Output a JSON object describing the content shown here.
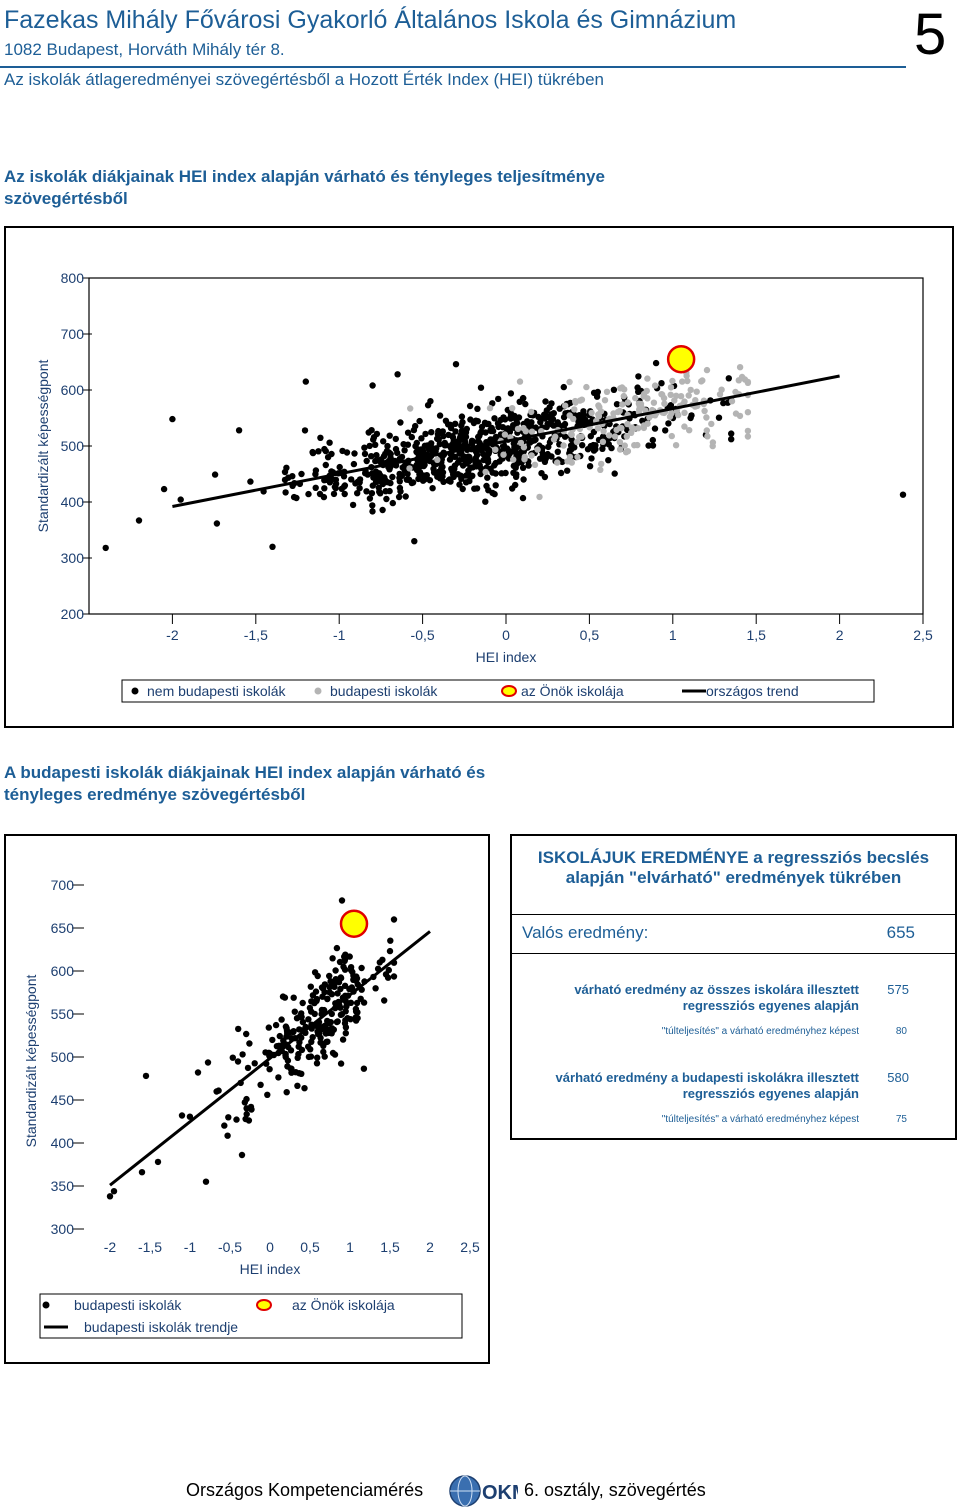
{
  "header": {
    "school_name": "Fazekas Mihály Fővárosi Gyakorló Általános Iskola és Gimnázium",
    "address": "1082 Budapest, Horváth Mihály tér 8.",
    "report_title": "Az iskolák átlageredményei szövegértésből a Hozott Érték Index (HEI) tükrében",
    "page_number": "5"
  },
  "section1": {
    "title": "Az iskolák diákjainak HEI index alapján várható és tényleges teljesítménye szövegértésből"
  },
  "section2": {
    "title": "A budapesti iskolák diákjainak HEI index alapján várható és tényleges eredménye szövegértésből"
  },
  "chart_data": [
    {
      "type": "scatter",
      "ylabel": "Standardizált képességpont",
      "xlabel": "HEI index",
      "xlim": [
        -2.5,
        2.5
      ],
      "ylim": [
        200,
        800
      ],
      "x_ticks": [
        "-2",
        "-1,5",
        "-1",
        "-0,5",
        "0",
        "0,5",
        "1",
        "1,5",
        "2",
        "2,5"
      ],
      "x_tick_values": [
        -2,
        -1.5,
        -1,
        -0.5,
        0,
        0.5,
        1,
        1.5,
        2,
        2.5
      ],
      "y_ticks": [
        "800",
        "700",
        "600",
        "500",
        "400",
        "300",
        "200"
      ],
      "y_tick_values": [
        800,
        700,
        600,
        500,
        400,
        300,
        200
      ],
      "legend": [
        {
          "label": "nem budapesti iskolák",
          "marker": "dot",
          "color": "#000000"
        },
        {
          "label": "budapesti iskolák",
          "marker": "dot",
          "color": "#b4b4b4"
        },
        {
          "label": "az Önök iskolája",
          "marker": "highlight",
          "color": "#ffff00"
        },
        {
          "label": "országos trend",
          "marker": "line",
          "color": "#000000"
        }
      ],
      "trend": {
        "x": [
          -2,
          2
        ],
        "y": [
          392,
          625
        ]
      },
      "own_school": {
        "x": 1.05,
        "y": 655
      },
      "clusters": [
        {
          "series": "nem budapesti iskolák",
          "count": 760,
          "x_mean": -0.15,
          "x_sd": 0.55,
          "x_min": -1.95,
          "x_max": 1.35,
          "slope": 58,
          "intercept": 505,
          "noise": 34
        },
        {
          "series": "budapesti iskolák",
          "count": 190,
          "x_mean": 0.75,
          "x_sd": 0.42,
          "x_min": -1.3,
          "x_max": 1.45,
          "slope": 58,
          "intercept": 505,
          "noise": 36
        }
      ],
      "points": [
        {
          "series": "nem budapesti iskolák",
          "x": -2.4,
          "y": 318
        },
        {
          "series": "nem budapesti iskolák",
          "x": -2.2,
          "y": 367
        },
        {
          "series": "nem budapesti iskolák",
          "x": -2.0,
          "y": 548
        },
        {
          "series": "nem budapesti iskolák",
          "x": -2.05,
          "y": 423
        },
        {
          "series": "nem budapesti iskolák",
          "x": -1.6,
          "y": 528
        },
        {
          "series": "nem budapesti iskolák",
          "x": -1.4,
          "y": 320
        },
        {
          "series": "nem budapesti iskolák",
          "x": -0.65,
          "y": 628
        },
        {
          "series": "nem budapesti iskolák",
          "x": -0.8,
          "y": 608
        },
        {
          "series": "nem budapesti iskolák",
          "x": -0.3,
          "y": 646
        },
        {
          "series": "nem budapesti iskolák",
          "x": -1.2,
          "y": 615
        },
        {
          "series": "nem budapesti iskolák",
          "x": -0.55,
          "y": 330
        },
        {
          "series": "nem budapesti iskolák",
          "x": 2.38,
          "y": 413
        },
        {
          "series": "nem budapesti iskolák",
          "x": 0.9,
          "y": 648
        }
      ]
    },
    {
      "type": "scatter",
      "ylabel": "Standardizált képességpont",
      "xlabel": "HEI index",
      "xlim": [
        -2.5,
        2.5
      ],
      "ylim": [
        300,
        700
      ],
      "x_ticks": [
        "-2",
        "-1,5",
        "-1",
        "-0,5",
        "0",
        "0,5",
        "1",
        "1,5",
        "2",
        "2,5"
      ],
      "x_tick_values": [
        -2,
        -1.5,
        -1,
        -0.5,
        0,
        0.5,
        1,
        1.5,
        2,
        2.5
      ],
      "y_ticks": [
        "700",
        "650",
        "600",
        "550",
        "500",
        "450",
        "400",
        "350",
        "300"
      ],
      "y_tick_values": [
        700,
        650,
        600,
        550,
        500,
        450,
        400,
        350,
        300
      ],
      "legend": [
        {
          "label": "budapesti iskolák",
          "marker": "dot",
          "color": "#000000"
        },
        {
          "label": "az Önök iskolája",
          "marker": "highlight",
          "color": "#ffff00"
        },
        {
          "label": "budapesti iskolák trendje",
          "marker": "line",
          "color": "#000000"
        }
      ],
      "trend": {
        "x": [
          -2,
          2
        ],
        "y": [
          351,
          646
        ]
      },
      "own_school": {
        "x": 1.05,
        "y": 655
      },
      "clusters": [
        {
          "series": "budapesti iskolák",
          "count": 250,
          "x_mean": 0.55,
          "x_sd": 0.5,
          "x_min": -1.3,
          "x_max": 1.55,
          "slope": 73,
          "intercept": 500,
          "noise": 28
        }
      ],
      "points": [
        {
          "series": "budapesti iskolák",
          "x": -1.4,
          "y": 378
        },
        {
          "series": "budapesti iskolák",
          "x": -1.6,
          "y": 366
        },
        {
          "series": "budapesti iskolák",
          "x": -1.1,
          "y": 432
        },
        {
          "series": "budapesti iskolák",
          "x": -0.8,
          "y": 355
        },
        {
          "series": "budapesti iskolák",
          "x": -0.35,
          "y": 386
        },
        {
          "series": "budapesti iskolák",
          "x": -1.55,
          "y": 478
        },
        {
          "series": "budapesti iskolák",
          "x": -0.9,
          "y": 482
        },
        {
          "series": "budapesti iskolák",
          "x": -1.95,
          "y": 344
        },
        {
          "series": "budapesti iskolák",
          "x": -2.0,
          "y": 338
        },
        {
          "series": "budapesti iskolák",
          "x": 0.9,
          "y": 682
        }
      ]
    }
  ],
  "info_panel": {
    "heading": "ISKOLÁJUK EREDMÉNYE a regressziós becslés alapján \"elvárható\" eredmények tükrében",
    "actual_label": "Valós eredmény:",
    "actual_value": "655",
    "rows": [
      {
        "label": "várható eredmény az összes iskolára illesztett regressziós egyenes alapján",
        "value": "575"
      },
      {
        "label": "\"túlteljesítés\" a várható eredményhez képest",
        "value": "80"
      },
      {
        "label": "várható eredmény a budapesti iskolákra illesztett regressziós egyenes alapján",
        "value": "580"
      },
      {
        "label": "\"túlteljesítés\" a várható eredményhez képest",
        "value": "75"
      }
    ]
  },
  "footer": {
    "left_text": "Országos Kompetenciamérés",
    "logo_text": "OKM",
    "right_text": "6. osztály, szövegértés"
  }
}
